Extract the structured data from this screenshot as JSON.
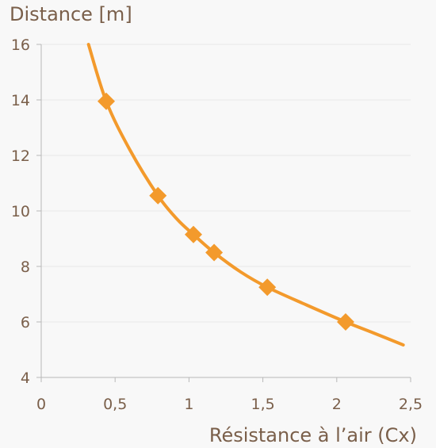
{
  "chart_data": {
    "type": "line",
    "ylabel": "Distance [m]",
    "xlabel": "Résistance à l’air (Cx)",
    "xlim": [
      0,
      2.5
    ],
    "ylim": [
      4,
      16
    ],
    "x_ticks": [
      "0",
      "0,5",
      "1",
      "1,5",
      "2",
      "2,5"
    ],
    "x_tick_values": [
      0,
      0.5,
      1,
      1.5,
      2,
      2.5
    ],
    "y_ticks": [
      "4",
      "6",
      "8",
      "10",
      "12",
      "14",
      "16"
    ],
    "y_tick_values": [
      4,
      6,
      8,
      10,
      12,
      14,
      16
    ],
    "grid": true,
    "series": [
      {
        "color": "#f39a2c",
        "curve": [
          {
            "x": 0.32,
            "y": 16.0
          },
          {
            "x": 0.44,
            "y": 13.95
          },
          {
            "x": 0.6,
            "y": 12.2
          },
          {
            "x": 0.79,
            "y": 10.55
          },
          {
            "x": 0.92,
            "y": 9.7
          },
          {
            "x": 1.03,
            "y": 9.15
          },
          {
            "x": 1.17,
            "y": 8.5
          },
          {
            "x": 1.35,
            "y": 7.8
          },
          {
            "x": 1.53,
            "y": 7.25
          },
          {
            "x": 1.8,
            "y": 6.6
          },
          {
            "x": 2.06,
            "y": 6.0
          },
          {
            "x": 2.25,
            "y": 5.6
          },
          {
            "x": 2.45,
            "y": 5.17
          }
        ],
        "markers": [
          {
            "x": 0.44,
            "y": 13.95
          },
          {
            "x": 0.79,
            "y": 10.55
          },
          {
            "x": 1.03,
            "y": 9.15
          },
          {
            "x": 1.17,
            "y": 8.5
          },
          {
            "x": 1.53,
            "y": 7.25
          },
          {
            "x": 2.06,
            "y": 6.0
          }
        ]
      }
    ]
  }
}
